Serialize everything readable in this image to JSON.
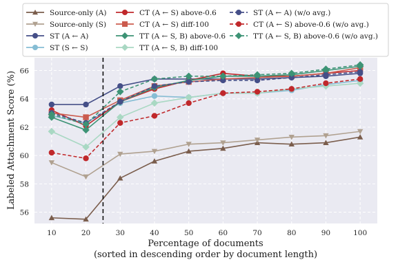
{
  "chart_data": {
    "type": "line",
    "xlabel": "Percentage of documents",
    "xlabel_note": "(sorted in descending order by document length)",
    "ylabel": "Labeled Attachment Score (%)",
    "x": [
      10,
      20,
      30,
      40,
      50,
      60,
      70,
      80,
      90,
      100
    ],
    "x_ticks": [
      "10",
      "20",
      "30",
      "40",
      "50",
      "60",
      "70",
      "80",
      "90",
      "100"
    ],
    "y_ticks": [
      "56",
      "58",
      "60",
      "62",
      "64",
      "66"
    ],
    "xlim": [
      5,
      105
    ],
    "ylim": [
      55.2,
      66.9
    ],
    "grid": true,
    "vline_x": 25,
    "legend_position": "top",
    "series": [
      {
        "name": "Source-only (A)",
        "color": "#7a5d4c",
        "marker": "triangle-up",
        "dashed": false,
        "values": [
          55.6,
          55.5,
          58.4,
          59.6,
          60.3,
          60.5,
          60.9,
          60.8,
          60.9,
          61.3
        ]
      },
      {
        "name": "Source-only (S)",
        "color": "#b0a190",
        "marker": "triangle-down",
        "dashed": false,
        "values": [
          59.5,
          58.5,
          60.1,
          60.3,
          60.8,
          60.9,
          61.1,
          61.3,
          61.4,
          61.7
        ]
      },
      {
        "name": "ST (A ← A)",
        "color": "#454f88",
        "marker": "circle",
        "dashed": false,
        "values": [
          63.6,
          63.6,
          64.9,
          65.4,
          65.4,
          65.4,
          65.4,
          65.5,
          65.6,
          65.8
        ]
      },
      {
        "name": "ST (S ← S)",
        "color": "#86bdd4",
        "marker": "circle",
        "dashed": false,
        "values": [
          62.8,
          62.3,
          63.7,
          64.2,
          64.1,
          64.4,
          64.4,
          64.6,
          65.0,
          65.3
        ]
      },
      {
        "name": "CT (A ← S) above-0.6",
        "color": "#c0282b",
        "marker": "circle",
        "dashed": false,
        "values": [
          63.2,
          62.1,
          63.8,
          64.7,
          65.3,
          65.8,
          65.6,
          65.6,
          65.8,
          66.0
        ]
      },
      {
        "name": "CT (A ← S) diff-100",
        "color": "#cb5b4e",
        "marker": "square",
        "dashed": false,
        "values": [
          63.0,
          62.7,
          63.9,
          64.9,
          65.2,
          65.4,
          65.5,
          65.6,
          65.8,
          66.2
        ]
      },
      {
        "name": "TT (A ← S, B) above-0.6",
        "color": "#3d9375",
        "marker": "diamond",
        "dashed": false,
        "values": [
          62.7,
          61.8,
          63.8,
          64.8,
          65.3,
          65.6,
          65.6,
          65.7,
          66.0,
          66.3
        ]
      },
      {
        "name": "TT (A ← S, B) diff-100",
        "color": "#a9d8c3",
        "marker": "diamond",
        "dashed": false,
        "values": [
          61.7,
          60.6,
          62.7,
          63.7,
          64.1,
          64.4,
          64.4,
          64.7,
          64.9,
          65.1
        ]
      },
      {
        "name": "ST (A ← A) (w/o avg.)",
        "color": "#454f88",
        "marker": "circle",
        "dashed": true,
        "values": [
          63.0,
          62.3,
          63.8,
          64.9,
          65.2,
          65.3,
          65.3,
          65.5,
          65.7,
          65.9
        ]
      },
      {
        "name": "CT (A ← S) above-0.6 (w/o avg.)",
        "color": "#c0282b",
        "marker": "circle",
        "dashed": true,
        "values": [
          60.2,
          59.8,
          62.3,
          62.8,
          63.7,
          64.4,
          64.5,
          64.7,
          65.1,
          65.4
        ]
      },
      {
        "name": "TT (A ← S, B) above-0.6 (w/o avg.)",
        "color": "#3d9375",
        "marker": "diamond",
        "dashed": true,
        "values": [
          62.9,
          62.2,
          64.5,
          65.4,
          65.6,
          65.6,
          65.7,
          65.8,
          66.1,
          66.4
        ]
      }
    ]
  }
}
